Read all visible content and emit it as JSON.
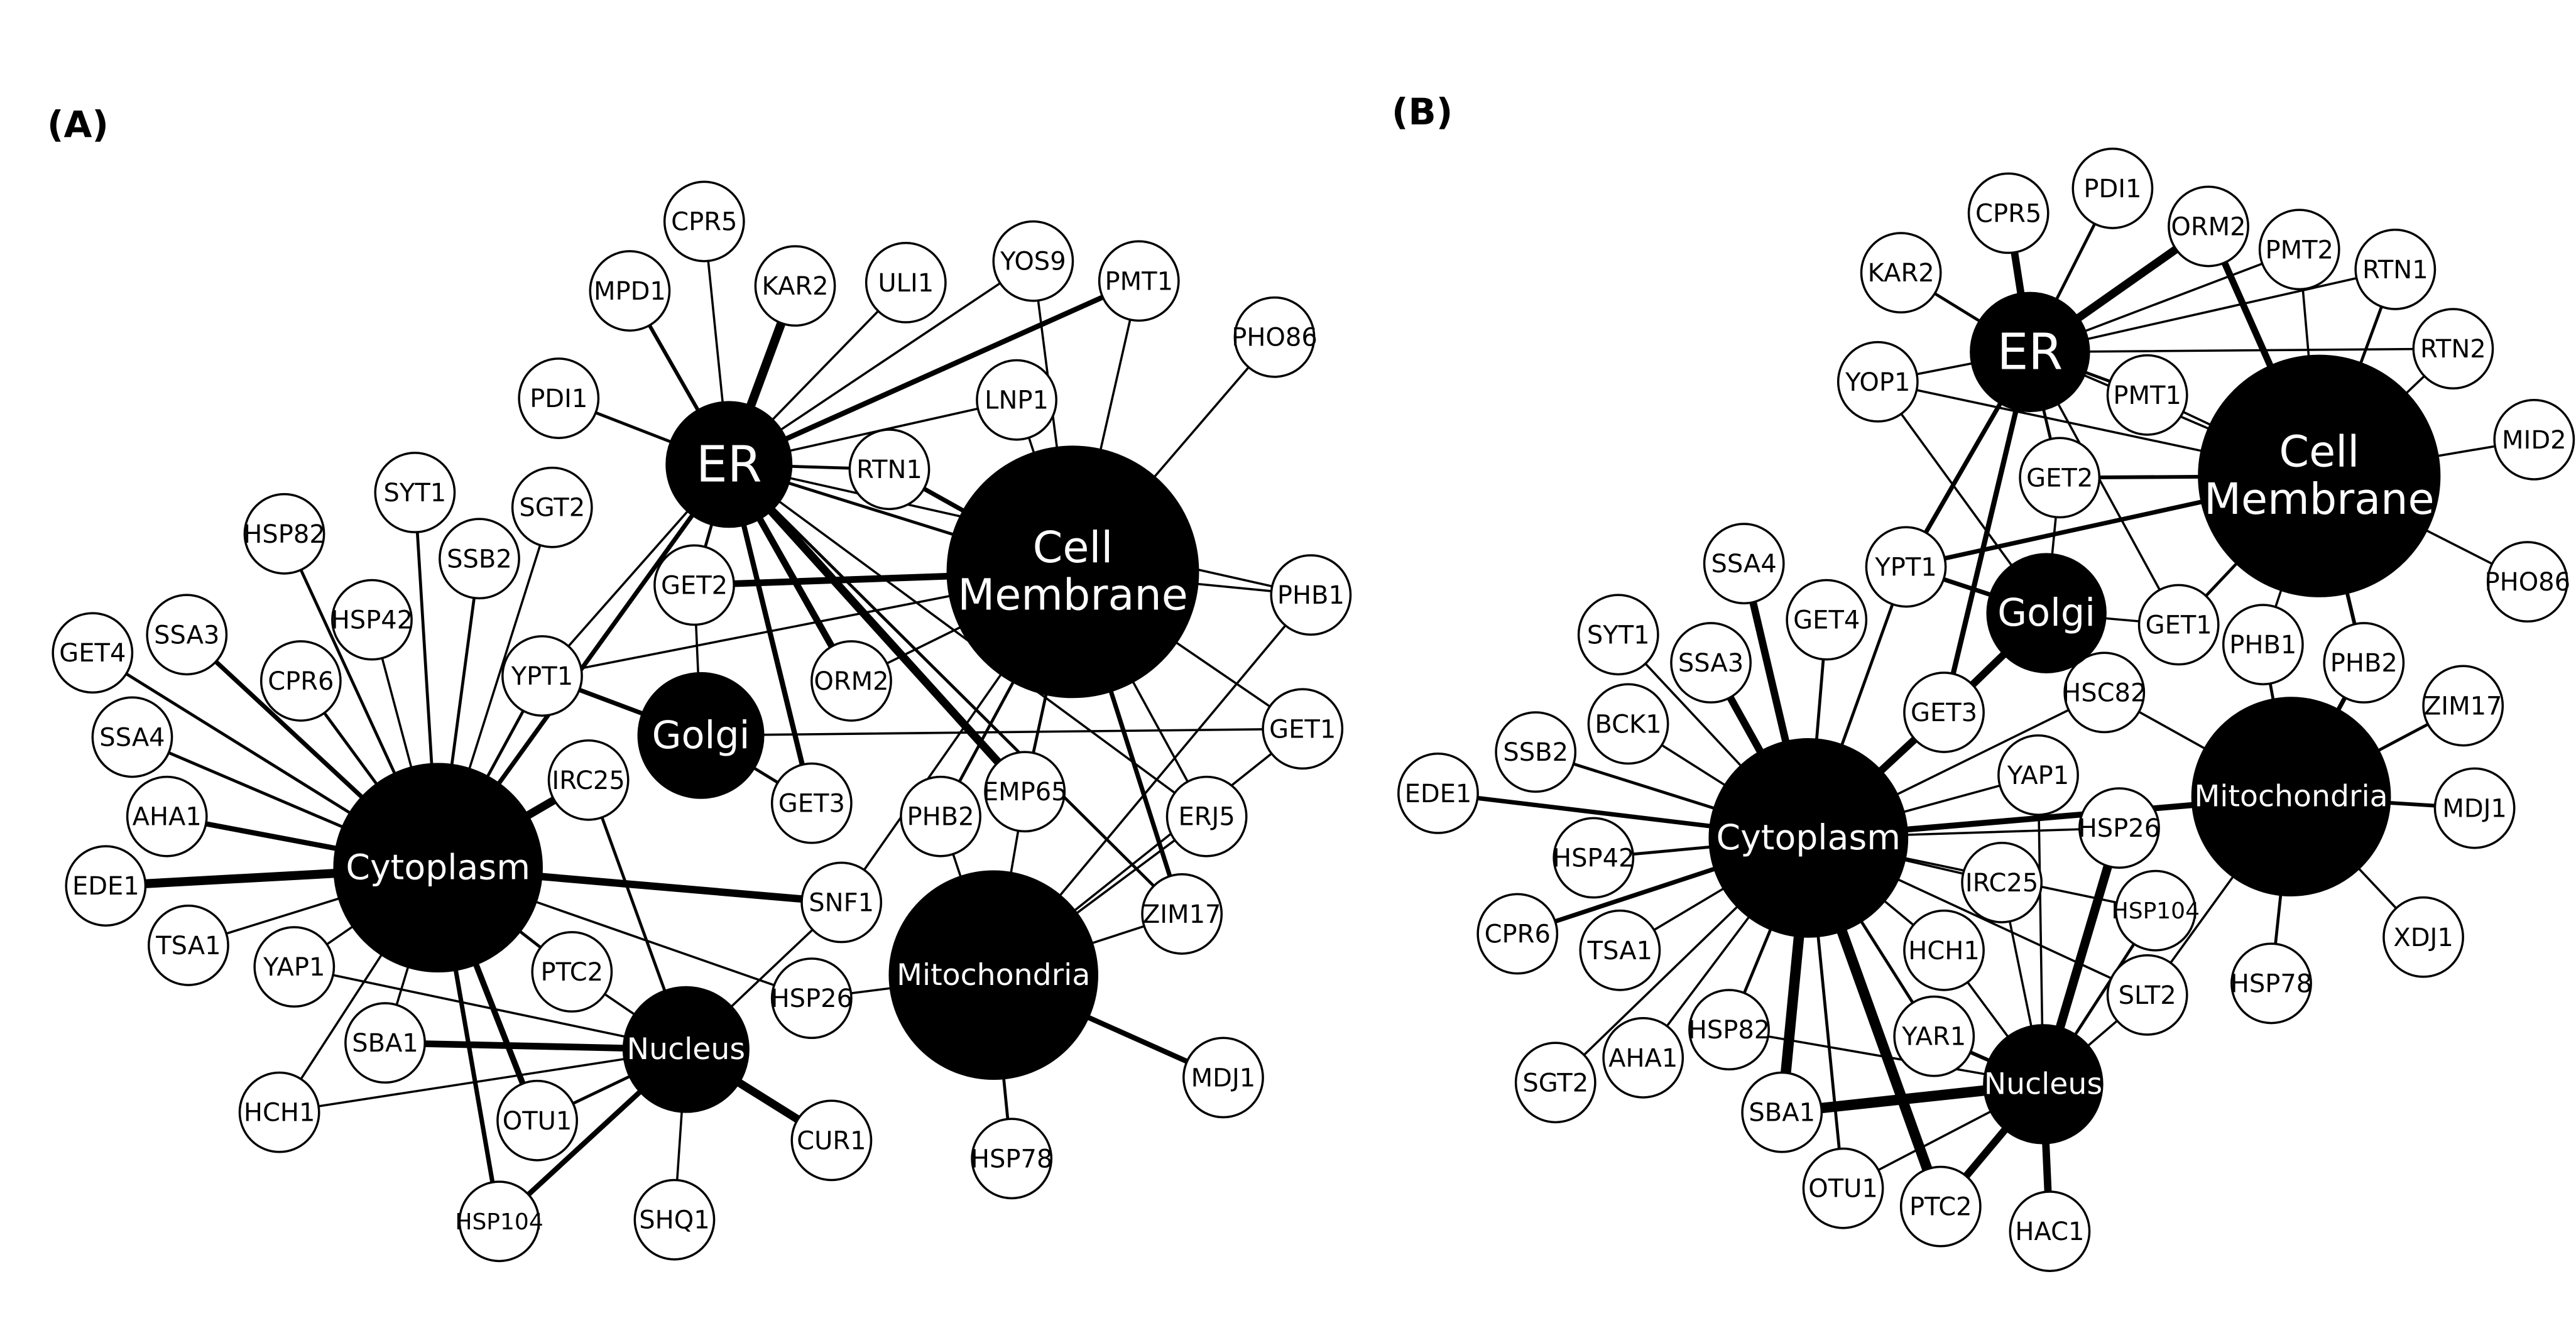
{
  "figure": {
    "panels": [
      {
        "label": "(A)",
        "hubs": [
          {
            "id": "er",
            "lines": [
              "ER"
            ]
          },
          {
            "id": "cm",
            "lines": [
              "Cell",
              "Membrane"
            ]
          },
          {
            "id": "golgi",
            "lines": [
              "Golgi"
            ]
          },
          {
            "id": "cyto",
            "lines": [
              "Cytoplasm"
            ]
          },
          {
            "id": "nuc",
            "lines": [
              "Nucleus"
            ]
          },
          {
            "id": "mito",
            "lines": [
              "Mitochondria"
            ]
          }
        ],
        "genes": [
          "CPR5",
          "MPD1",
          "KAR2",
          "ULI1",
          "YOS9",
          "PMT1",
          "PHO86",
          "PDI1",
          "LNP1",
          "RTN1",
          "SYT1",
          "SGT2",
          "HSP82",
          "SSB2",
          "HSP42",
          "SSA3",
          "GET4",
          "CPR6",
          "YPT1",
          "GET2",
          "ORM2",
          "PHB1",
          "SSA4",
          "IRC25",
          "GET1",
          "AHA1",
          "GET3",
          "EMP65",
          "PHB2",
          "ERJ5",
          "EDE1",
          "TSA1",
          "SNF1",
          "ZIM17",
          "YAP1",
          "PTC2",
          "HSP26",
          "SBA1",
          "HCH1",
          "OTU1",
          "MDJ1",
          "CUR1",
          "HSP104",
          "SHQ1",
          "HSP78"
        ]
      },
      {
        "label": "(B)",
        "hubs": [
          {
            "id": "er",
            "lines": [
              "ER"
            ]
          },
          {
            "id": "cm",
            "lines": [
              "Cell",
              "Membrane"
            ]
          },
          {
            "id": "golgi",
            "lines": [
              "Golgi"
            ]
          },
          {
            "id": "cyto",
            "lines": [
              "Cytoplasm"
            ]
          },
          {
            "id": "mito",
            "lines": [
              "Mitochondria"
            ]
          },
          {
            "id": "nuc",
            "lines": [
              "Nucleus"
            ]
          }
        ],
        "genes": [
          "PDI1",
          "CPR5",
          "ORM2",
          "PMT2",
          "RTN1",
          "KAR2",
          "RTN2",
          "YOP1",
          "PMT1",
          "MID2",
          "GET2",
          "SSA4",
          "YPT1",
          "PHO86",
          "SYT1",
          "GET4",
          "GET1",
          "SSA3",
          "PHB1",
          "PHB2",
          "BCK1",
          "HSC82",
          "ZIM17",
          "GET3",
          "SSB2",
          "YAP1",
          "MDJ1",
          "EDE1",
          "HSP42",
          "HSP26",
          "IRC25",
          "CPR6",
          "HSP104",
          "XDJ1",
          "TSA1",
          "HCH1",
          "HSP78",
          "SLT2",
          "YAR1",
          "SGT2",
          "AHA1",
          "HSP82",
          "SBA1",
          "OTU1",
          "PTC2",
          "HAC1"
        ]
      }
    ]
  }
}
